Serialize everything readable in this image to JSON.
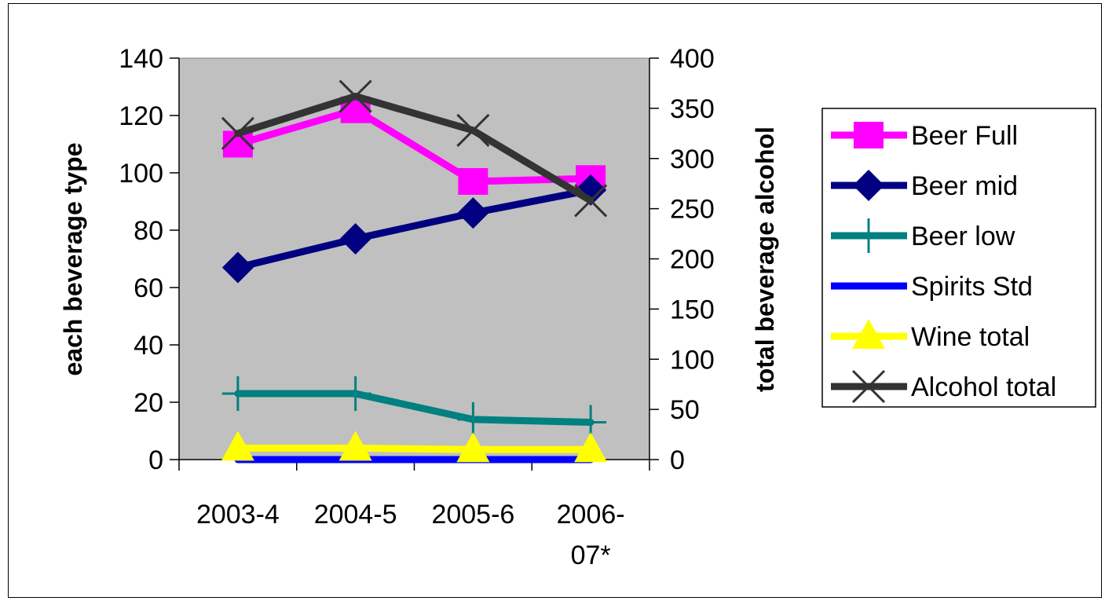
{
  "chart_data": {
    "type": "line",
    "title": "",
    "categories": [
      "2003-4",
      "2004-5",
      "2005-6",
      "2006-07*"
    ],
    "category_labels": [
      [
        "2003-4"
      ],
      [
        "2004-5"
      ],
      [
        "2005-6"
      ],
      [
        "2006-",
        "07*"
      ]
    ],
    "y_left_label": "each beverage type",
    "y_right_label": "total beverage alcohol",
    "y_left_lim": [
      0,
      140
    ],
    "y_left_ticks": [
      "0",
      "20",
      "40",
      "60",
      "80",
      "100",
      "120",
      "140"
    ],
    "y_right_lim": [
      0,
      400
    ],
    "y_right_ticks": [
      "0",
      "50",
      "100",
      "150",
      "200",
      "250",
      "300",
      "350",
      "400"
    ],
    "grid": false,
    "legend_position": "right",
    "plot_background": "#c0c0c0",
    "series": [
      {
        "name": "Beer Full",
        "axis": "left",
        "color": "#ff00ff",
        "marker": "square",
        "values": [
          110,
          122,
          97,
          98
        ]
      },
      {
        "name": "Beer mid",
        "axis": "left",
        "color": "#000080",
        "marker": "diamond",
        "values": [
          67,
          77,
          86,
          94
        ]
      },
      {
        "name": "Beer low",
        "axis": "left",
        "color": "#008080",
        "marker": "plus",
        "values": [
          23,
          23,
          14,
          13
        ]
      },
      {
        "name": "Spirits Std",
        "axis": "left",
        "color": "#0000ff",
        "marker": "none",
        "values": [
          0,
          0,
          0,
          0
        ]
      },
      {
        "name": "Wine total",
        "axis": "left",
        "color": "#ffff00",
        "marker": "triangle",
        "values": [
          4,
          4,
          3.5,
          3.5
        ]
      },
      {
        "name": "Alcohol total",
        "axis": "right",
        "color": "#333333",
        "marker": "x",
        "values": [
          325,
          362,
          328,
          258
        ]
      }
    ]
  }
}
